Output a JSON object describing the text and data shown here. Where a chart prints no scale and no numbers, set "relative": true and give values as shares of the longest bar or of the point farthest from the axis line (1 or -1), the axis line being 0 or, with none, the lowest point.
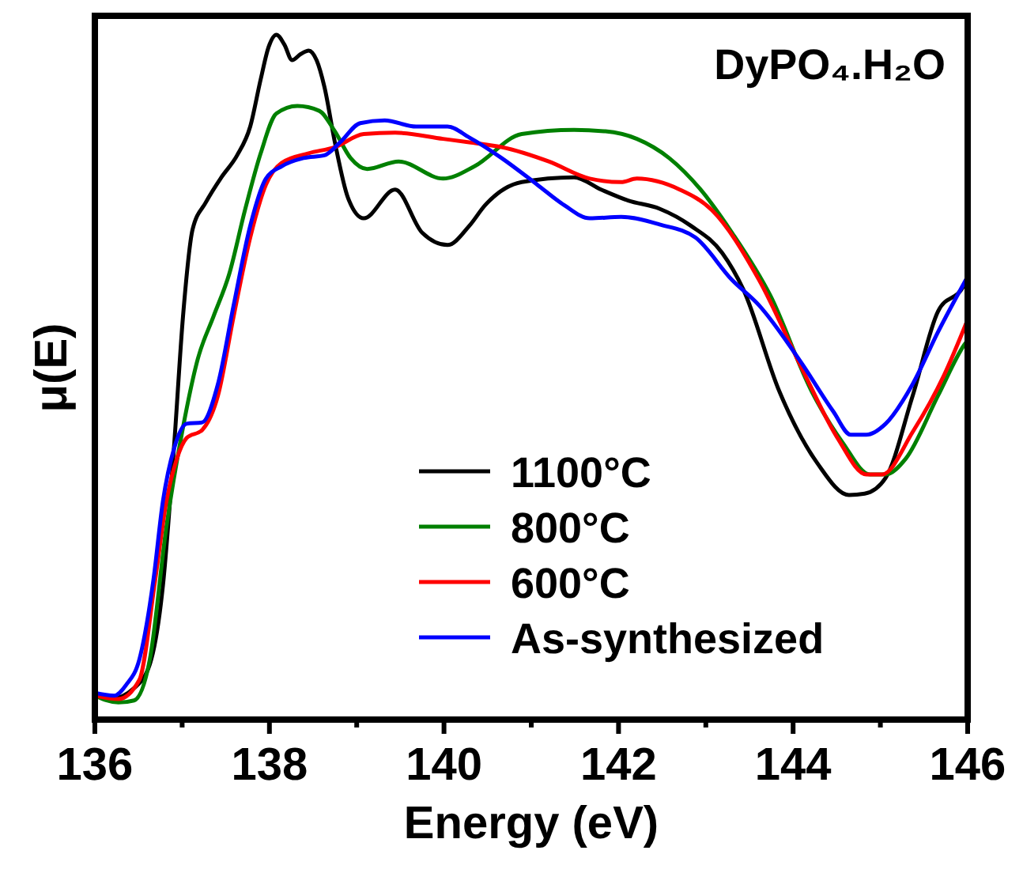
{
  "chart_data": {
    "type": "line",
    "title": "DyPO₄.H₂O",
    "xlabel": "Energy (eV)",
    "ylabel": "μ(E)",
    "relative": true,
    "xlim": [
      136,
      146
    ],
    "xticks": [
      136,
      {
        "value": 137,
        "label": null
      },
      138,
      {
        "value": 139,
        "label": null
      },
      140,
      {
        "value": 141,
        "label": null
      },
      142,
      {
        "value": 143,
        "label": null
      },
      144,
      {
        "value": 145,
        "label": null
      },
      146
    ],
    "legend": "bottom right",
    "grid": false,
    "marker": "none",
    "line_style": "solid",
    "series": [
      {
        "name": "1100°C",
        "color": "#000000",
        "x": [
          136,
          136.18,
          136.45,
          136.63,
          136.78,
          136.91,
          137.01,
          137.12,
          137.27,
          137.45,
          137.63,
          137.78,
          137.9,
          137.99,
          138.08,
          138.17,
          138.26,
          138.36,
          138.45,
          138.54,
          138.63,
          138.75,
          138.9,
          139.08,
          139.44,
          139.75,
          140.04,
          140.29,
          140.47,
          140.89,
          141.49,
          141.8,
          142.11,
          142.47,
          142.83,
          143.19,
          143.43,
          143.84,
          144.28,
          144.64,
          144.82,
          145.06,
          145.37,
          145.66,
          145.96,
          146
        ],
        "values": [
          0.035,
          0.03,
          0.046,
          0.081,
          0.196,
          0.404,
          0.589,
          0.716,
          0.755,
          0.792,
          0.824,
          0.866,
          0.935,
          0.982,
          1.0,
          0.986,
          0.963,
          0.972,
          0.977,
          0.963,
          0.924,
          0.843,
          0.762,
          0.732,
          0.774,
          0.711,
          0.693,
          0.721,
          0.751,
          0.785,
          0.792,
          0.774,
          0.758,
          0.746,
          0.721,
          0.681,
          0.628,
          0.48,
          0.374,
          0.328,
          0.33,
          0.353,
          0.473,
          0.596,
          0.635,
          0.647
        ]
      },
      {
        "name": "800°C",
        "color": "#008000",
        "x": [
          136,
          136.27,
          136.45,
          136.63,
          136.82,
          137,
          137.18,
          137.36,
          137.54,
          137.72,
          137.9,
          138.08,
          138.32,
          138.57,
          138.75,
          138.93,
          139.12,
          139.48,
          139.99,
          140.35,
          140.89,
          141.49,
          141.85,
          142.21,
          142.58,
          142.94,
          143.3,
          143.74,
          144.21,
          144.57,
          144.88,
          145.06,
          145.29,
          145.66,
          145.96,
          146
        ],
        "values": [
          0.035,
          0.025,
          0.028,
          0.088,
          0.282,
          0.42,
          0.527,
          0.589,
          0.651,
          0.744,
          0.827,
          0.885,
          0.896,
          0.889,
          0.859,
          0.82,
          0.804,
          0.815,
          0.79,
          0.808,
          0.855,
          0.861,
          0.859,
          0.848,
          0.82,
          0.774,
          0.711,
          0.619,
          0.48,
          0.404,
          0.358,
          0.358,
          0.381,
          0.473,
          0.547,
          0.554
        ]
      },
      {
        "name": "600°C",
        "color": "#ff0000",
        "x": [
          136,
          136.27,
          136.51,
          136.69,
          136.82,
          136.94,
          137.05,
          137.23,
          137.41,
          137.59,
          137.78,
          137.96,
          138.14,
          138.45,
          138.75,
          139.08,
          139.44,
          139.99,
          140.29,
          140.66,
          141.2,
          141.67,
          142.03,
          142.21,
          142.7,
          143.07,
          143.61,
          144.1,
          144.51,
          144.84,
          145.02,
          145.37,
          145.73,
          146
        ],
        "values": [
          0.035,
          0.03,
          0.058,
          0.203,
          0.319,
          0.381,
          0.411,
          0.423,
          0.473,
          0.589,
          0.704,
          0.781,
          0.813,
          0.827,
          0.836,
          0.855,
          0.857,
          0.848,
          0.843,
          0.836,
          0.815,
          0.79,
          0.785,
          0.79,
          0.774,
          0.744,
          0.642,
          0.513,
          0.411,
          0.358,
          0.358,
          0.42,
          0.503,
          0.584
        ]
      },
      {
        "name": "As-synthesized",
        "color": "#0000ff",
        "x": [
          136,
          136.22,
          136.36,
          136.51,
          136.67,
          136.78,
          136.91,
          137.05,
          137.23,
          137.41,
          137.59,
          137.78,
          137.96,
          138.14,
          138.39,
          138.63,
          138.81,
          139.04,
          139.32,
          139.68,
          140.04,
          140.29,
          140.66,
          141.07,
          141.38,
          141.67,
          142.03,
          142.47,
          142.88,
          143.3,
          143.61,
          144.1,
          144.46,
          144.66,
          144.84,
          145.06,
          145.37,
          145.66,
          146
        ],
        "values": [
          0.039,
          0.035,
          0.051,
          0.088,
          0.203,
          0.319,
          0.397,
          0.432,
          0.434,
          0.49,
          0.605,
          0.721,
          0.79,
          0.808,
          0.82,
          0.824,
          0.843,
          0.871,
          0.875,
          0.866,
          0.866,
          0.85,
          0.82,
          0.781,
          0.751,
          0.732,
          0.734,
          0.723,
          0.704,
          0.642,
          0.605,
          0.52,
          0.45,
          0.416,
          0.416,
          0.432,
          0.49,
          0.566,
          0.647
        ]
      }
    ]
  }
}
